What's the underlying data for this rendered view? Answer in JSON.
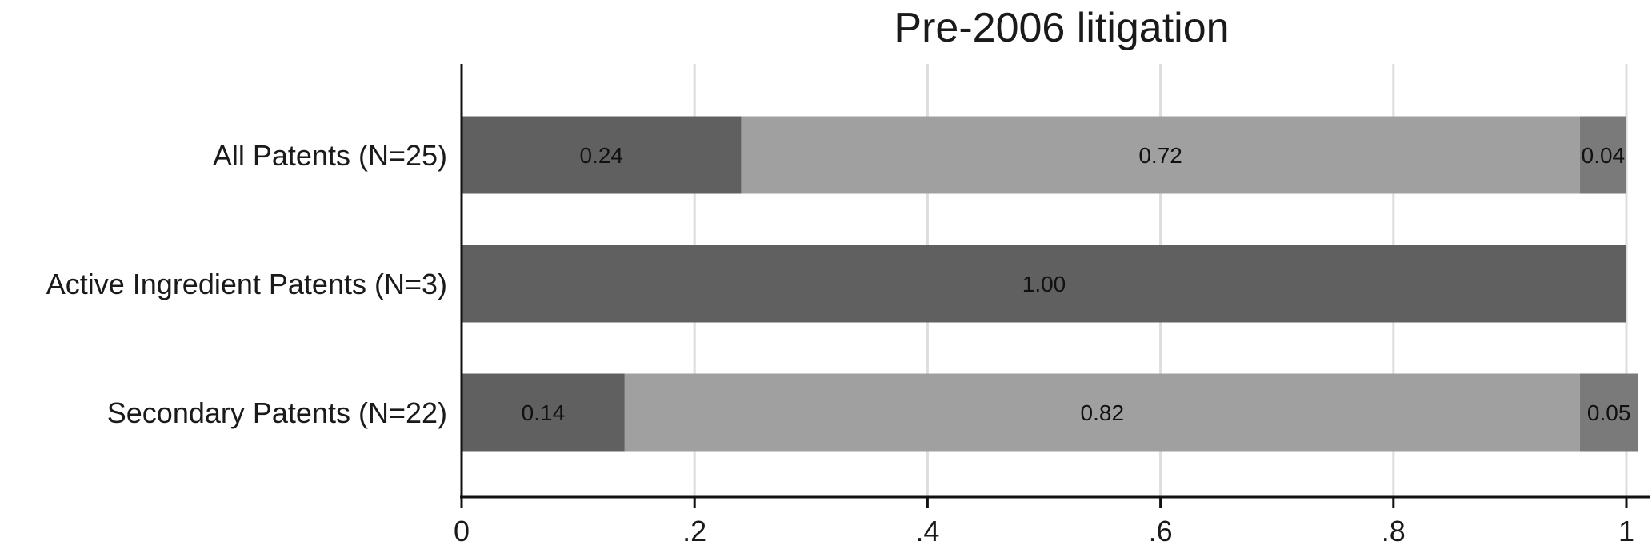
{
  "chart_data": {
    "type": "bar",
    "orientation": "horizontal",
    "stacked": true,
    "title": "Pre-2006 litigation",
    "categories": [
      "All Patents (N=25)",
      "Active Ingredient Patents (N=3)",
      "Secondary Patents (N=22)"
    ],
    "series": [
      {
        "color": "#606060",
        "values": [
          0.24,
          1.0,
          0.14
        ]
      },
      {
        "color": "#a0a0a0",
        "values": [
          0.72,
          0,
          0.82
        ]
      },
      {
        "color": "#7a7a7a",
        "values": [
          0.04,
          0,
          0.05
        ]
      }
    ],
    "data_labels": [
      [
        "0.24",
        "1.00",
        "0.14"
      ],
      [
        "0.72",
        "",
        "0.82"
      ],
      [
        "0.04",
        "",
        "0.05"
      ]
    ],
    "xlim": [
      0,
      1
    ],
    "x_ticks": [
      0,
      0.2,
      0.4,
      0.6,
      0.8,
      1
    ],
    "x_tick_labels": [
      "0",
      ".2",
      ".4",
      ".6",
      ".8",
      "1"
    ],
    "grid": true,
    "colors": {
      "grid": "#dddddd",
      "axis": "#111111"
    }
  }
}
